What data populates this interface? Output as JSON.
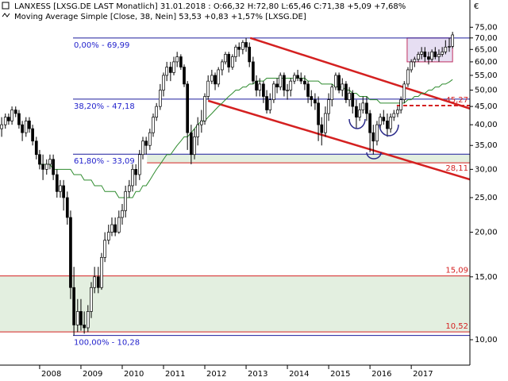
{
  "chart_data": {
    "type": "candlestick",
    "title": "LANXESS [LXSG.DE LAST Monatlich] 31.01.2018 : O:66,32 H:72,80 L:65,46 C:71,38 +5,09 +7,68%",
    "subtitle": "Moving Average Simple [Close, 38, Nein] 53,53 +0,83 +1,57% [LXSG.DE]",
    "currency": "€",
    "log_scale": true,
    "xlim": [
      2007.04,
      2018.42
    ],
    "xticks": [
      2008,
      2009,
      2010,
      2011,
      2012,
      2013,
      2014,
      2015,
      2016,
      2017
    ],
    "ylim": [
      8.49,
      89.4
    ],
    "yticks": [
      {
        "value": 10,
        "label": "10,00"
      },
      {
        "value": 15,
        "label": "15,00"
      },
      {
        "value": 20,
        "label": "20,00"
      },
      {
        "value": 25,
        "label": "25,00"
      },
      {
        "value": 30,
        "label": "30,00"
      },
      {
        "value": 35,
        "label": "35,00"
      },
      {
        "value": 40,
        "label": "40,00"
      },
      {
        "value": 45,
        "label": "45,00"
      },
      {
        "value": 50,
        "label": "50,00"
      },
      {
        "value": 55,
        "label": "55,00"
      },
      {
        "value": 60,
        "label": "60,00"
      },
      {
        "value": 65,
        "label": "65,00"
      },
      {
        "value": 70,
        "label": "70,00"
      },
      {
        "value": 75,
        "label": "75,00"
      }
    ],
    "up_color": "#ffffff",
    "down_color": "#000000",
    "x": [
      2007.08,
      2007.17,
      2007.25,
      2007.33,
      2007.42,
      2007.5,
      2007.58,
      2007.67,
      2007.75,
      2007.83,
      2007.92,
      2008,
      2008.08,
      2008.17,
      2008.25,
      2008.33,
      2008.42,
      2008.5,
      2008.58,
      2008.67,
      2008.75,
      2008.83,
      2008.92,
      2009,
      2009.08,
      2009.17,
      2009.25,
      2009.33,
      2009.42,
      2009.5,
      2009.58,
      2009.67,
      2009.75,
      2009.83,
      2009.92,
      2010,
      2010.08,
      2010.17,
      2010.25,
      2010.33,
      2010.42,
      2010.5,
      2010.58,
      2010.67,
      2010.75,
      2010.83,
      2010.92,
      2011,
      2011.08,
      2011.17,
      2011.25,
      2011.33,
      2011.42,
      2011.5,
      2011.58,
      2011.67,
      2011.75,
      2011.83,
      2011.92,
      2012,
      2012.08,
      2012.17,
      2012.25,
      2012.33,
      2012.42,
      2012.5,
      2012.58,
      2012.67,
      2012.75,
      2012.83,
      2012.92,
      2013,
      2013.08,
      2013.17,
      2013.25,
      2013.33,
      2013.42,
      2013.5,
      2013.58,
      2013.67,
      2013.75,
      2013.83,
      2013.92,
      2014,
      2014.08,
      2014.17,
      2014.25,
      2014.33,
      2014.42,
      2014.5,
      2014.58,
      2014.67,
      2014.75,
      2014.83,
      2014.92,
      2015,
      2015.08,
      2015.17,
      2015.25,
      2015.33,
      2015.42,
      2015.5,
      2015.58,
      2015.67,
      2015.75,
      2015.83,
      2015.92,
      2016,
      2016.08,
      2016.17,
      2016.25,
      2016.33,
      2016.42,
      2016.5,
      2016.58,
      2016.67,
      2016.75,
      2016.83,
      2016.92,
      2017,
      2017.08,
      2017.17,
      2017.25,
      2017.33,
      2017.42,
      2017.5,
      2017.58,
      2017.67,
      2017.75,
      2017.83,
      2017.92,
      2018
    ],
    "open": [
      39,
      40,
      42,
      41,
      44,
      43,
      40,
      38,
      41,
      39,
      36,
      33,
      31,
      30,
      31,
      32,
      29,
      26,
      27,
      25,
      22,
      14,
      11,
      12,
      11,
      10.8,
      12,
      14,
      15,
      14,
      17,
      19,
      20,
      21,
      20,
      22,
      23,
      26,
      27,
      30,
      29,
      33,
      36,
      35,
      38,
      42,
      45,
      50,
      55,
      58,
      56,
      60,
      62,
      58,
      52,
      38,
      33,
      37,
      40,
      41,
      48,
      53,
      55,
      52,
      57,
      60,
      63,
      58,
      62,
      66,
      65,
      68,
      66,
      60,
      53,
      50,
      52,
      48,
      44,
      47,
      52,
      51,
      55,
      50,
      50,
      53,
      55,
      54,
      53,
      52,
      48,
      47,
      46,
      40,
      38,
      43,
      47,
      51,
      55,
      50,
      52,
      47,
      49,
      45,
      42,
      44,
      46,
      43,
      38,
      36,
      40,
      42,
      41,
      39,
      42,
      43,
      44,
      47,
      52,
      57,
      60,
      61,
      63,
      64,
      62,
      61,
      64,
      62,
      63,
      64,
      66,
      66.32
    ],
    "high": [
      42,
      43,
      43,
      45,
      45,
      44,
      41,
      42,
      42,
      40,
      37,
      34,
      33,
      32,
      33,
      33,
      30,
      28,
      28,
      26,
      23,
      16,
      13,
      13,
      12,
      12.5,
      14.5,
      16,
      16,
      17.5,
      20,
      21,
      22,
      22,
      23,
      24,
      27,
      28,
      31,
      31,
      34,
      37,
      37,
      39,
      43,
      46,
      52,
      56,
      60,
      60,
      62,
      64,
      63,
      59,
      53,
      40,
      39,
      42,
      44,
      49,
      55,
      57,
      56,
      58,
      61,
      64,
      64,
      63,
      67,
      68,
      69,
      69.99,
      68,
      62,
      55,
      54,
      53,
      50,
      49,
      53,
      54,
      56,
      56,
      52,
      54,
      56,
      57,
      56,
      55,
      53,
      50,
      49,
      48,
      42,
      45,
      49,
      52,
      56,
      56,
      54,
      53,
      51,
      50,
      47,
      46,
      48,
      48,
      44,
      40,
      41,
      43,
      44,
      43,
      43,
      44,
      45,
      48,
      53,
      58,
      61,
      62,
      64,
      66,
      66,
      64,
      65,
      66,
      65,
      66,
      69,
      70,
      72.8
    ],
    "low": [
      37,
      39,
      40,
      40,
      42,
      39,
      36,
      37,
      38,
      35,
      32,
      30,
      28,
      29,
      30,
      28,
      25,
      25,
      23,
      21,
      13,
      10.28,
      10.5,
      10.6,
      10.4,
      10.5,
      11.5,
      13.5,
      13.5,
      13.8,
      16.5,
      18.5,
      19.5,
      19.5,
      19.8,
      21,
      22,
      25,
      26,
      27,
      28,
      32,
      33,
      34,
      37,
      41,
      44,
      48,
      53,
      53,
      55,
      58,
      57,
      51,
      34,
      31,
      32,
      35,
      38,
      40,
      47,
      52,
      50,
      51,
      55,
      59,
      56,
      57,
      60,
      62,
      63,
      64,
      58,
      52,
      48,
      48,
      46,
      43,
      43,
      46,
      49,
      50,
      48,
      47,
      48,
      52,
      53,
      52,
      50,
      46,
      45,
      44,
      36,
      35,
      37,
      41,
      45,
      50,
      49,
      48,
      46,
      45,
      43,
      39,
      41,
      43,
      41,
      33.5,
      33,
      35,
      39,
      40,
      37,
      38,
      41,
      42,
      43,
      46,
      51,
      56,
      58,
      60,
      61,
      60,
      59,
      60,
      61,
      60,
      62,
      63,
      64,
      65.46
    ],
    "close": [
      40,
      42,
      41,
      44,
      43,
      40,
      38,
      41,
      39,
      36,
      33,
      31,
      30,
      31,
      32,
      29,
      26,
      27,
      25,
      22,
      14,
      11,
      12,
      11,
      10.8,
      12,
      14,
      15,
      14,
      17,
      19,
      20,
      21,
      20,
      22,
      23,
      26,
      27,
      30,
      29,
      33,
      36,
      35,
      38,
      42,
      45,
      50,
      55,
      58,
      56,
      60,
      62,
      58,
      52,
      38,
      33,
      37,
      40,
      41,
      48,
      53,
      55,
      52,
      57,
      60,
      63,
      58,
      62,
      66,
      65,
      68,
      66,
      60,
      53,
      50,
      52,
      48,
      44,
      47,
      52,
      51,
      55,
      50,
      50,
      53,
      55,
      54,
      53,
      52,
      48,
      47,
      46,
      40,
      38,
      43,
      47,
      51,
      55,
      50,
      52,
      47,
      49,
      45,
      42,
      44,
      46,
      43,
      38,
      36,
      40,
      42,
      41,
      39,
      42,
      43,
      44,
      47,
      52,
      57,
      60,
      61,
      63,
      64,
      62,
      61,
      64,
      62,
      63,
      64,
      66,
      66.29,
      71.38
    ],
    "moving_average": {
      "color": "#2e8b2e",
      "values": [
        null,
        null,
        null,
        null,
        null,
        null,
        null,
        null,
        null,
        null,
        null,
        31,
        31,
        31,
        31,
        30,
        30,
        30,
        30,
        30,
        30,
        29,
        29,
        29,
        28,
        28,
        28,
        27,
        27,
        27,
        26,
        26,
        26,
        26,
        25,
        25,
        25,
        25,
        25,
        26,
        26,
        27,
        27,
        28,
        29,
        30,
        31,
        32,
        33,
        33,
        34,
        35,
        36,
        37,
        37,
        38,
        39,
        40,
        41,
        41,
        42,
        43,
        44,
        45,
        46,
        47,
        48,
        49,
        50,
        50,
        51,
        51,
        52,
        52,
        53,
        53,
        53,
        54,
        54,
        54,
        54,
        54,
        54,
        54,
        54,
        54,
        54,
        54,
        54,
        53,
        53,
        53,
        53,
        52,
        52,
        52,
        52,
        51,
        51,
        51,
        50,
        50,
        49,
        49,
        48,
        48,
        48,
        47,
        47,
        47,
        46,
        46,
        46,
        46,
        46,
        46,
        46,
        46,
        47,
        47,
        48,
        48,
        49,
        49,
        50,
        50,
        51,
        51,
        52,
        52,
        52.7,
        53.53
      ]
    },
    "fib_color": "#1c1c9c",
    "fib_levels": [
      {
        "value": 69.99,
        "label": "0,00% - 69,99"
      },
      {
        "value": 47.18,
        "label": "38,20% - 47,18"
      },
      {
        "value": 33.09,
        "label": "61,80% - 33,09"
      },
      {
        "value": 10.28,
        "label": "100,00% - 10,28"
      }
    ],
    "level_color": "#d42020",
    "price_levels": [
      {
        "value": 45.27,
        "label": "45,27",
        "start": 2016.65,
        "dashed": true
      },
      {
        "value": 31.3,
        "start": 2010.6
      },
      {
        "value": 15.09,
        "label": "15,09",
        "start": 2007.04
      },
      {
        "value": 10.52,
        "label": "10,52",
        "start": 2007.04
      }
    ],
    "zones": [
      {
        "from": 10.52,
        "to": 15.09,
        "start": 2007.04
      },
      {
        "from": 31.3,
        "to": 33.09,
        "start": 2010.6
      }
    ],
    "channel": [
      {
        "x": [
          2013.1,
          2018.42
        ],
        "values": [
          70,
          44.4
        ]
      },
      {
        "x": [
          2012.08,
          2018.42
        ],
        "values": [
          46.7,
          28.11
        ],
        "label": "28,11"
      }
    ],
    "box": {
      "x": [
        2016.9,
        2018.0
      ],
      "values": [
        60,
        70
      ]
    }
  }
}
